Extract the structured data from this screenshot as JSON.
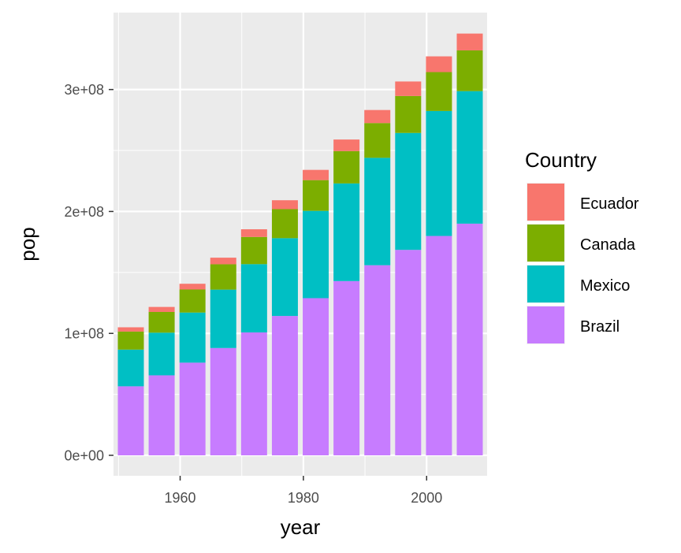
{
  "chart_data": {
    "type": "bar",
    "stacked": true,
    "xlabel": "year",
    "ylabel": "pop",
    "x_ticks": [
      "1960",
      "1980",
      "2000"
    ],
    "y_ticks": [
      "0e+00",
      "1e+08",
      "2e+08",
      "3e+08"
    ],
    "ylim": [
      0,
      350000000
    ],
    "xlim": [
      1948,
      2012
    ],
    "grid": true,
    "legend": {
      "title": "Country",
      "position": "right"
    },
    "categories": [
      1952,
      1957,
      1962,
      1967,
      1972,
      1977,
      1982,
      1987,
      1992,
      1997,
      2002,
      2007
    ],
    "series": [
      {
        "name": "Brazil",
        "color": "#C77CFF",
        "values": [
          56600000,
          65600000,
          76000000,
          88000000,
          100800000,
          114300000,
          128900000,
          142900000,
          155900000,
          168500000,
          179900000,
          190000000
        ]
      },
      {
        "name": "Mexico",
        "color": "#00BFC4",
        "values": [
          30100000,
          35000000,
          41100000,
          47900000,
          56000000,
          63800000,
          71600000,
          80100000,
          88100000,
          95900000,
          102500000,
          108700000
        ]
      },
      {
        "name": "Canada",
        "color": "#7CAE00",
        "values": [
          14800000,
          17000000,
          18900000,
          20800000,
          22300000,
          23800000,
          25200000,
          26500000,
          28500000,
          30300000,
          31900000,
          33400000
        ]
      },
      {
        "name": "Ecuador",
        "color": "#F8766D",
        "values": [
          3500000,
          4100000,
          4700000,
          5400000,
          6300000,
          7300000,
          8400000,
          9500000,
          10700000,
          11900000,
          12900000,
          13800000
        ]
      }
    ],
    "legend_order": [
      "Ecuador",
      "Canada",
      "Mexico",
      "Brazil"
    ]
  }
}
